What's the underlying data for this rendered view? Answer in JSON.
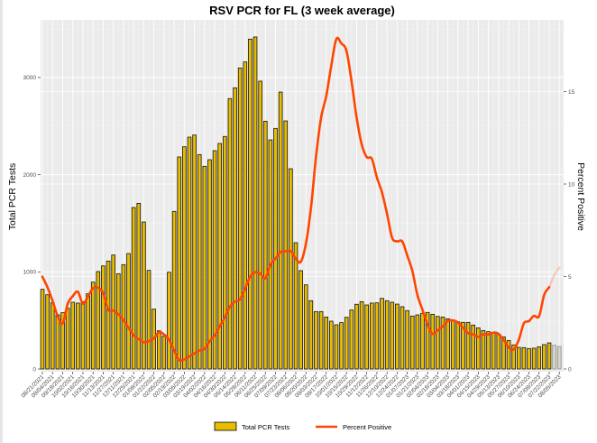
{
  "chart_data": {
    "type": "bar+line",
    "title": "RSV PCR for FL (3 week average)",
    "ylabel": "Total PCR Tests",
    "ylabel_right": "Percent Positive",
    "ylim": [
      0,
      3600
    ],
    "ylim_right": [
      0,
      19.5
    ],
    "yticks": [
      0,
      1000,
      2000,
      3000
    ],
    "yticks_right": [
      0,
      5,
      10,
      15
    ],
    "grid": true,
    "legend_position": "bottom",
    "start_week": "08/21/2021",
    "x_tick_labels": [
      "08/21/2021",
      "09/04/2021",
      "09/18/2021",
      "10/02/2021",
      "10/16/2021",
      "10/30/2021",
      "11/13/2021",
      "11/27/2021",
      "12/11/2021",
      "12/25/2021",
      "01/08/2022",
      "01/22/2022",
      "02/05/2022",
      "02/19/2022",
      "03/05/2022",
      "03/19/2022",
      "04/02/2022",
      "04/16/2022",
      "04/30/2022",
      "05/14/2022",
      "05/28/2022",
      "06/11/2022",
      "06/25/2022",
      "07/09/2022",
      "07/23/2022",
      "08/06/2022",
      "08/20/2022",
      "09/03/2022",
      "09/17/2022",
      "10/01/2022",
      "10/15/2022",
      "10/29/2022",
      "11/12/2022",
      "11/26/2022",
      "12/10/2022",
      "12/24/2022",
      "01/07/2023",
      "01/21/2023",
      "02/04/2023",
      "02/18/2023",
      "03/04/2023",
      "03/18/2023",
      "04/01/2023",
      "04/15/2023",
      "04/29/2023",
      "05/13/2023",
      "05/27/2023",
      "06/10/2023",
      "06/24/2023",
      "07/08/2023",
      "07/22/2023",
      "08/05/2023"
    ],
    "series": [
      {
        "name": "Total PCR Tests",
        "type": "bar",
        "axis": "left",
        "color": "#E8BC00",
        "values": [
          820,
          764,
          681,
          557,
          579,
          625,
          687,
          678,
          693,
          774,
          894,
          1003,
          1061,
          1111,
          1173,
          981,
          1074,
          1188,
          1662,
          1705,
          1513,
          1015,
          616,
          393,
          337,
          996,
          1622,
          2182,
          2287,
          2386,
          2408,
          2207,
          2086,
          2154,
          2247,
          2321,
          2393,
          2783,
          2894,
          3098,
          3160,
          3395,
          3417,
          2962,
          2550,
          2358,
          2476,
          2850,
          2553,
          2061,
          1300,
          1012,
          866,
          703,
          591,
          591,
          535,
          492,
          455,
          477,
          532,
          607,
          666,
          693,
          659,
          678,
          681,
          727,
          703,
          687,
          668,
          641,
          601,
          545,
          557,
          573,
          582,
          563,
          541,
          535,
          517,
          498,
          486,
          480,
          480,
          452,
          424,
          396,
          384,
          374,
          359,
          331,
          294,
          248,
          223,
          220,
          211,
          214,
          229,
          251,
          269,
          244,
          232
        ],
        "incomplete_last": 2
      },
      {
        "name": "Percent Positive",
        "type": "line",
        "axis": "right",
        "color": "#FF4500",
        "values": [
          4.99,
          4.42,
          3.69,
          2.88,
          2.47,
          3.53,
          3.94,
          4.18,
          3.53,
          3.94,
          4.37,
          4.39,
          4.1,
          3.2,
          3.16,
          2.96,
          2.63,
          2.23,
          1.82,
          1.62,
          1.45,
          1.5,
          1.66,
          1.99,
          1.87,
          1.58,
          1.0,
          0.47,
          0.52,
          0.68,
          0.84,
          1.0,
          1.09,
          1.5,
          1.82,
          2.31,
          2.8,
          3.37,
          3.64,
          3.77,
          4.34,
          4.99,
          5.23,
          5.15,
          4.91,
          5.64,
          5.97,
          6.33,
          6.37,
          6.37,
          5.97,
          5.8,
          6.78,
          8.73,
          11.5,
          13.6,
          14.75,
          16.4,
          17.84,
          17.6,
          17.2,
          15.56,
          13.6,
          12.15,
          11.46,
          11.37,
          10.36,
          9.55,
          8.4,
          7.1,
          6.9,
          6.9,
          6.13,
          5.3,
          4.0,
          3.2,
          2.4,
          1.9,
          2.1,
          2.3,
          2.6,
          2.63,
          2.52,
          2.23,
          1.94,
          1.87,
          1.74,
          1.87,
          1.87,
          1.97,
          1.9,
          1.58,
          1.17,
          1.06,
          1.58,
          2.47,
          2.59,
          2.88,
          2.85,
          4.0,
          4.42,
          5.07,
          5.48
        ],
        "incomplete_last": 2
      }
    ]
  }
}
